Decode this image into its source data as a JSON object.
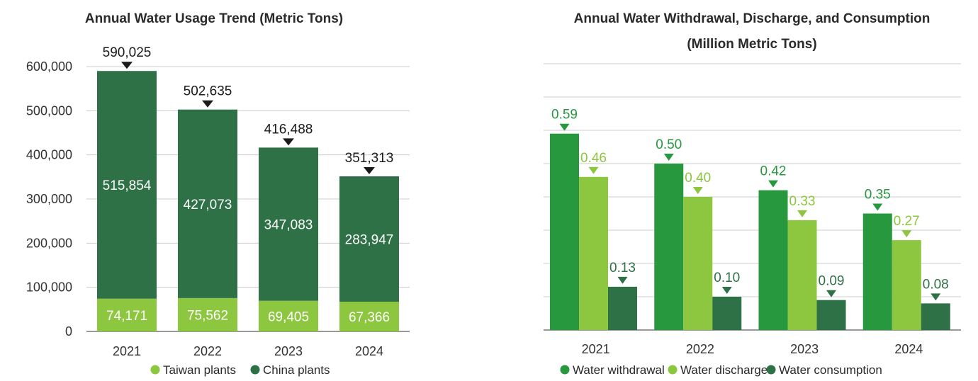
{
  "colors": {
    "dark_green": "#2E7147",
    "light_green": "#8DC63F",
    "bright_green": "#27983E",
    "grid": "#cccccc",
    "axis": "#333333"
  },
  "chart_data": [
    {
      "type": "bar",
      "stacked": true,
      "title": "Annual Water Usage Trend (Metric Tons)",
      "categories": [
        "2021",
        "2022",
        "2023",
        "2024"
      ],
      "series": [
        {
          "name": "Taiwan plants",
          "values": [
            74171,
            75562,
            69405,
            67366
          ],
          "value_labels": [
            "74,171",
            "75,562",
            "69,405",
            "67,366"
          ]
        },
        {
          "name": "China plants",
          "values": [
            515854,
            427073,
            347083,
            283947
          ],
          "value_labels": [
            "515,854",
            "427,073",
            "347,083",
            "283,947"
          ]
        }
      ],
      "totals": [
        590025,
        502635,
        416488,
        351313
      ],
      "total_labels": [
        "590,025",
        "502,635",
        "416,488",
        "351,313"
      ],
      "ylim": [
        0,
        600000
      ],
      "yticks": [
        0,
        100000,
        200000,
        300000,
        400000,
        500000,
        600000
      ],
      "ytick_labels": [
        "0",
        "100,000",
        "200,000",
        "300,000",
        "400,000",
        "500,000",
        "600,000"
      ],
      "grid": true,
      "legend_position": "bottom"
    },
    {
      "type": "bar",
      "title_lines": [
        "Annual Water Withdrawal, Discharge, and Consumption",
        "(Million Metric Tons)"
      ],
      "categories": [
        "2021",
        "2022",
        "2023",
        "2024"
      ],
      "series": [
        {
          "name": "Water withdrawal",
          "values": [
            0.59,
            0.5,
            0.42,
            0.35
          ],
          "value_labels": [
            "0.59",
            "0.50",
            "0.42",
            "0.35"
          ]
        },
        {
          "name": "Water discharge",
          "values": [
            0.46,
            0.4,
            0.33,
            0.27
          ],
          "value_labels": [
            "0.46",
            "0.40",
            "0.33",
            "0.27"
          ]
        },
        {
          "name": "Water consumption",
          "values": [
            0.13,
            0.1,
            0.09,
            0.08
          ],
          "value_labels": [
            "0.13",
            "0.10",
            "0.09",
            "0.08"
          ]
        }
      ],
      "ylim": [
        0,
        0.8
      ],
      "grid": true,
      "legend_position": "bottom"
    }
  ]
}
